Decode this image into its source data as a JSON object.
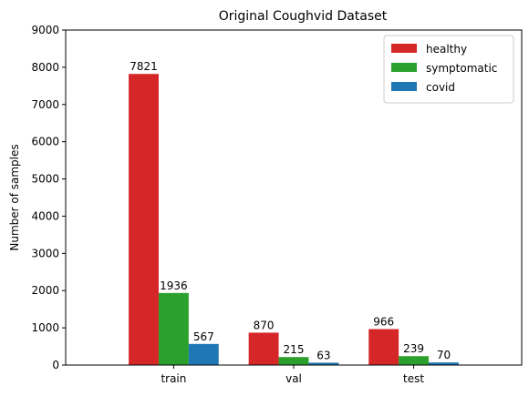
{
  "chart_data": {
    "type": "bar",
    "title": "Original Coughvid Dataset",
    "xlabel": "",
    "ylabel": "Number of samples",
    "categories": [
      "train",
      "val",
      "test"
    ],
    "series": [
      {
        "name": "healthy",
        "color": "#d62728",
        "values": [
          7821,
          870,
          966
        ]
      },
      {
        "name": "symptomatic",
        "color": "#2ca02c",
        "values": [
          1936,
          215,
          239
        ]
      },
      {
        "name": "covid",
        "color": "#1f77b4",
        "values": [
          567,
          63,
          70
        ]
      }
    ],
    "ylim": [
      0,
      9000
    ],
    "yticks": [
      0,
      1000,
      2000,
      3000,
      4000,
      5000,
      6000,
      7000,
      8000,
      9000
    ],
    "grid": false,
    "legend_position": "top-right"
  }
}
